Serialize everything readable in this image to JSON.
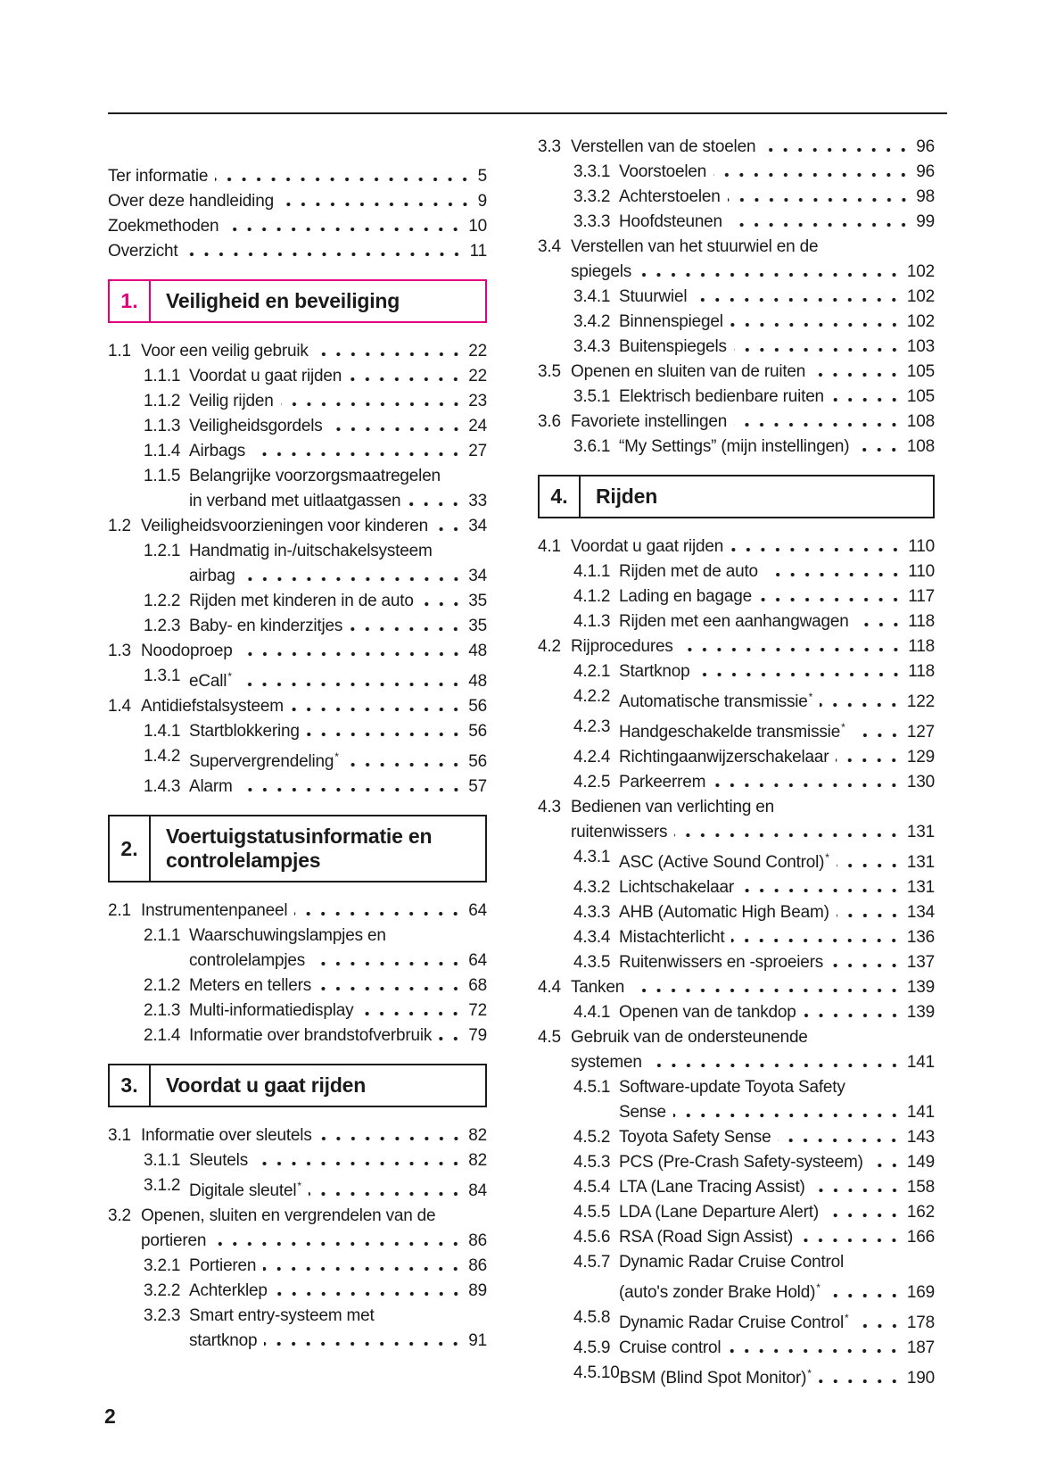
{
  "colors": {
    "accent": "#e3007d",
    "text": "#1a1a1a"
  },
  "footer": {
    "page_number": "2"
  },
  "toc": {
    "left": [
      {
        "type": "entries",
        "items": [
          {
            "num": "",
            "lines": [
              "Ter informatie"
            ],
            "page": "5"
          },
          {
            "num": "",
            "lines": [
              "Over deze handleiding"
            ],
            "page": "9"
          },
          {
            "num": "",
            "lines": [
              "Zoekmethoden"
            ],
            "page": "10"
          },
          {
            "num": "",
            "lines": [
              "Overzicht"
            ],
            "page": "11"
          }
        ]
      },
      {
        "type": "chapter",
        "num": "1.",
        "title": "Veiligheid en beveiliging",
        "accent": true
      },
      {
        "type": "entries",
        "items": [
          {
            "num": "1.1",
            "lines": [
              "Voor een veilig gebruik"
            ],
            "page": "22"
          },
          {
            "num": "1.1.1",
            "lines": [
              "Voordat u gaat rijden"
            ],
            "page": "22"
          },
          {
            "num": "1.1.2",
            "lines": [
              "Veilig rijden"
            ],
            "page": "23"
          },
          {
            "num": "1.1.3",
            "lines": [
              "Veiligheidsgordels"
            ],
            "page": "24"
          },
          {
            "num": "1.1.4",
            "lines": [
              "Airbags"
            ],
            "page": "27"
          },
          {
            "num": "1.1.5",
            "lines": [
              "Belangrijke voorzorgsmaatregelen",
              "in verband met uitlaatgassen"
            ],
            "page": "33"
          },
          {
            "num": "1.2",
            "lines": [
              "Veiligheidsvoorzieningen voor kinderen"
            ],
            "page": "34"
          },
          {
            "num": "1.2.1",
            "lines": [
              "Handmatig in-/uitschakelsysteem",
              "airbag"
            ],
            "page": "34"
          },
          {
            "num": "1.2.2",
            "lines": [
              "Rijden met kinderen in de auto"
            ],
            "page": "35"
          },
          {
            "num": "1.2.3",
            "lines": [
              "Baby- en kinderzitjes"
            ],
            "page": "35"
          },
          {
            "num": "1.3",
            "lines": [
              "Noodoproep"
            ],
            "page": "48"
          },
          {
            "num": "1.3.1",
            "lines": [
              "eCall*"
            ],
            "page": "48"
          },
          {
            "num": "1.4",
            "lines": [
              "Antidiefstalsysteem"
            ],
            "page": "56"
          },
          {
            "num": "1.4.1",
            "lines": [
              "Startblokkering"
            ],
            "page": "56"
          },
          {
            "num": "1.4.2",
            "lines": [
              "Supervergrendeling*"
            ],
            "page": "56"
          },
          {
            "num": "1.4.3",
            "lines": [
              "Alarm"
            ],
            "page": "57"
          }
        ]
      },
      {
        "type": "chapter",
        "num": "2.",
        "title": "Voertuigstatusinformatie en controlelampjes",
        "accent": false
      },
      {
        "type": "entries",
        "items": [
          {
            "num": "2.1",
            "lines": [
              "Instrumentenpaneel"
            ],
            "page": "64"
          },
          {
            "num": "2.1.1",
            "lines": [
              "Waarschuwingslampjes en",
              "controlelampjes"
            ],
            "page": "64"
          },
          {
            "num": "2.1.2",
            "lines": [
              "Meters en tellers"
            ],
            "page": "68"
          },
          {
            "num": "2.1.3",
            "lines": [
              "Multi-informatiedisplay"
            ],
            "page": "72"
          },
          {
            "num": "2.1.4",
            "lines": [
              "Informatie over brandstofverbruik"
            ],
            "page": "79"
          }
        ]
      },
      {
        "type": "chapter",
        "num": "3.",
        "title": "Voordat u gaat rijden",
        "accent": false
      },
      {
        "type": "entries",
        "items": [
          {
            "num": "3.1",
            "lines": [
              "Informatie over sleutels"
            ],
            "page": "82"
          },
          {
            "num": "3.1.1",
            "lines": [
              "Sleutels"
            ],
            "page": "82"
          },
          {
            "num": "3.1.2",
            "lines": [
              "Digitale sleutel*"
            ],
            "page": "84"
          },
          {
            "num": "3.2",
            "lines": [
              "Openen, sluiten en vergrendelen van de",
              "portieren"
            ],
            "page": "86"
          },
          {
            "num": "3.2.1",
            "lines": [
              "Portieren"
            ],
            "page": "86"
          },
          {
            "num": "3.2.2",
            "lines": [
              "Achterklep"
            ],
            "page": "89"
          },
          {
            "num": "3.2.3",
            "lines": [
              "Smart entry-systeem met",
              "startknop"
            ],
            "page": "91"
          }
        ]
      }
    ],
    "right": [
      {
        "type": "entries",
        "items": [
          {
            "num": "3.3",
            "lines": [
              "Verstellen van de stoelen"
            ],
            "page": "96"
          },
          {
            "num": "3.3.1",
            "lines": [
              "Voorstoelen"
            ],
            "page": "96"
          },
          {
            "num": "3.3.2",
            "lines": [
              "Achterstoelen"
            ],
            "page": "98"
          },
          {
            "num": "3.3.3",
            "lines": [
              "Hoofdsteunen"
            ],
            "page": "99"
          },
          {
            "num": "3.4",
            "lines": [
              "Verstellen van het stuurwiel en de",
              "spiegels"
            ],
            "page": "102"
          },
          {
            "num": "3.4.1",
            "lines": [
              "Stuurwiel"
            ],
            "page": "102"
          },
          {
            "num": "3.4.2",
            "lines": [
              "Binnenspiegel"
            ],
            "page": "102"
          },
          {
            "num": "3.4.3",
            "lines": [
              "Buitenspiegels"
            ],
            "page": "103"
          },
          {
            "num": "3.5",
            "lines": [
              "Openen en sluiten van de ruiten"
            ],
            "page": "105"
          },
          {
            "num": "3.5.1",
            "lines": [
              "Elektrisch bedienbare ruiten"
            ],
            "page": "105"
          },
          {
            "num": "3.6",
            "lines": [
              "Favoriete instellingen"
            ],
            "page": "108"
          },
          {
            "num": "3.6.1",
            "lines": [
              "“My Settings” (mijn instellingen)"
            ],
            "page": "108"
          }
        ]
      },
      {
        "type": "chapter",
        "num": "4.",
        "title": "Rijden",
        "accent": false
      },
      {
        "type": "entries",
        "items": [
          {
            "num": "4.1",
            "lines": [
              "Voordat u gaat rijden"
            ],
            "page": "110"
          },
          {
            "num": "4.1.1",
            "lines": [
              "Rijden met de auto"
            ],
            "page": "110"
          },
          {
            "num": "4.1.2",
            "lines": [
              "Lading en bagage"
            ],
            "page": "117"
          },
          {
            "num": "4.1.3",
            "lines": [
              "Rijden met een aanhangwagen"
            ],
            "page": "118"
          },
          {
            "num": "4.2",
            "lines": [
              "Rijprocedures"
            ],
            "page": "118"
          },
          {
            "num": "4.2.1",
            "lines": [
              "Startknop"
            ],
            "page": "118"
          },
          {
            "num": "4.2.2",
            "lines": [
              "Automatische transmissie*"
            ],
            "page": "122"
          },
          {
            "num": "4.2.3",
            "lines": [
              "Handgeschakelde transmissie*"
            ],
            "page": "127"
          },
          {
            "num": "4.2.4",
            "lines": [
              "Richtingaanwijzerschakelaar"
            ],
            "page": "129"
          },
          {
            "num": "4.2.5",
            "lines": [
              "Parkeerrem"
            ],
            "page": "130"
          },
          {
            "num": "4.3",
            "lines": [
              "Bedienen van verlichting en",
              "ruitenwissers"
            ],
            "page": "131"
          },
          {
            "num": "4.3.1",
            "lines": [
              "ASC (Active Sound Control)*"
            ],
            "page": "131"
          },
          {
            "num": "4.3.2",
            "lines": [
              "Lichtschakelaar"
            ],
            "page": "131"
          },
          {
            "num": "4.3.3",
            "lines": [
              "AHB (Automatic High Beam)"
            ],
            "page": "134"
          },
          {
            "num": "4.3.4",
            "lines": [
              "Mistachterlicht"
            ],
            "page": "136"
          },
          {
            "num": "4.3.5",
            "lines": [
              "Ruitenwissers en -sproeiers"
            ],
            "page": "137"
          },
          {
            "num": "4.4",
            "lines": [
              "Tanken"
            ],
            "page": "139"
          },
          {
            "num": "4.4.1",
            "lines": [
              "Openen van de tankdop"
            ],
            "page": "139"
          },
          {
            "num": "4.5",
            "lines": [
              "Gebruik van de ondersteunende",
              "systemen"
            ],
            "page": "141"
          },
          {
            "num": "4.5.1",
            "lines": [
              "Software-update Toyota Safety",
              "Sense"
            ],
            "page": "141"
          },
          {
            "num": "4.5.2",
            "lines": [
              "Toyota Safety Sense"
            ],
            "page": "143"
          },
          {
            "num": "4.5.3",
            "lines": [
              "PCS (Pre-Crash Safety-systeem)"
            ],
            "page": "149"
          },
          {
            "num": "4.5.4",
            "lines": [
              "LTA (Lane Tracing Assist)"
            ],
            "page": "158"
          },
          {
            "num": "4.5.5",
            "lines": [
              "LDA (Lane Departure Alert)"
            ],
            "page": "162"
          },
          {
            "num": "4.5.6",
            "lines": [
              "RSA (Road Sign Assist)"
            ],
            "page": "166"
          },
          {
            "num": "4.5.7",
            "lines": [
              "Dynamic Radar Cruise Control",
              "(auto's zonder Brake Hold)*"
            ],
            "page": "169"
          },
          {
            "num": "4.5.8",
            "lines": [
              "Dynamic Radar Cruise Control*"
            ],
            "page": "178"
          },
          {
            "num": "4.5.9",
            "lines": [
              "Cruise control"
            ],
            "page": "187"
          },
          {
            "num": "4.5.10",
            "lines": [
              "BSM (Blind Spot Monitor)*"
            ],
            "page": "190"
          }
        ]
      }
    ]
  }
}
